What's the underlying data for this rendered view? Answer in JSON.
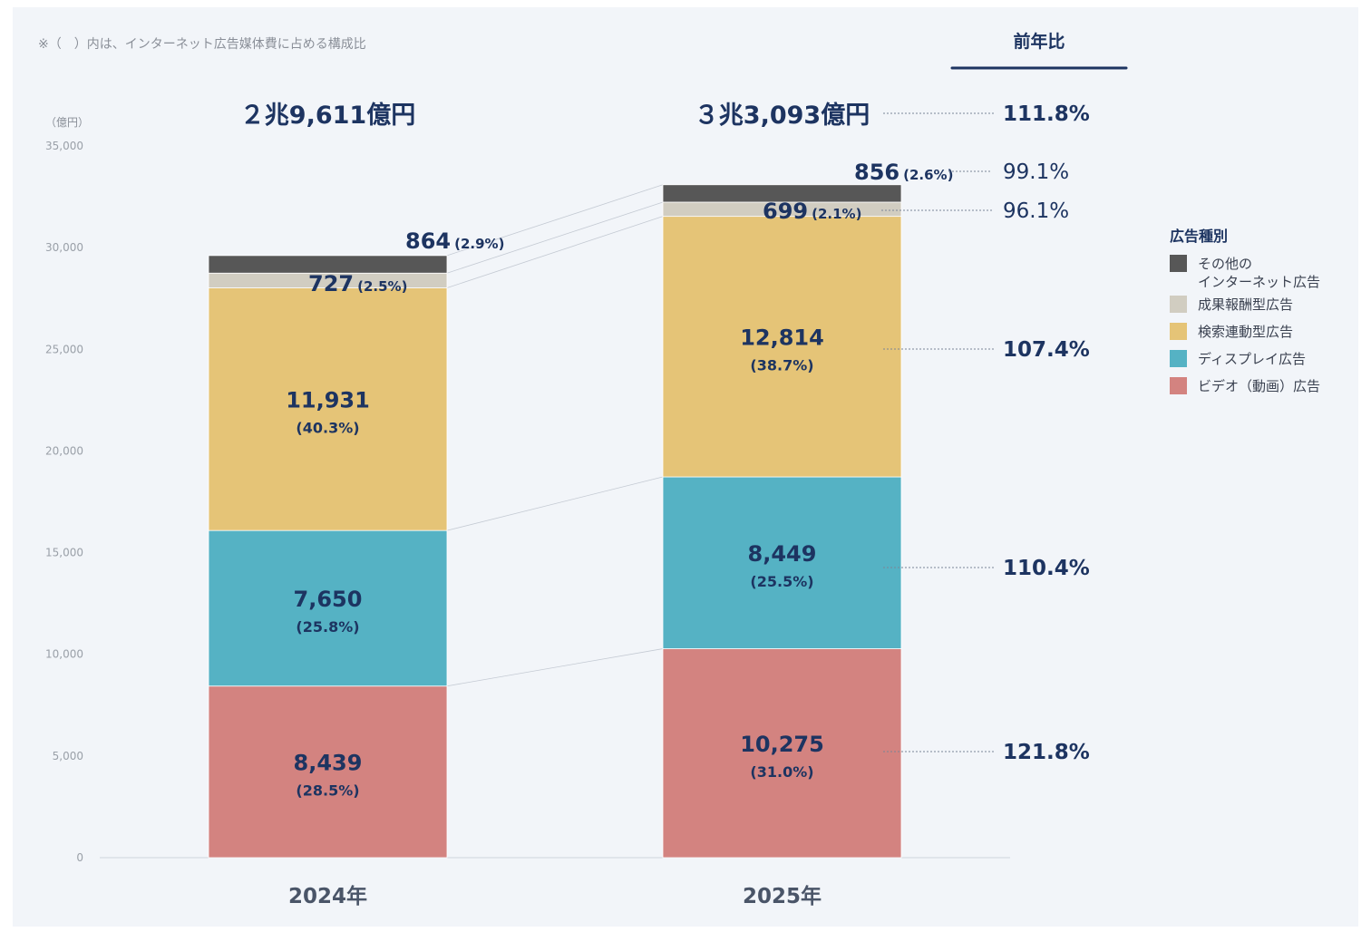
{
  "chart_data": {
    "type": "bar",
    "stacked": true,
    "note": "※（　）内は、インターネット広告媒体費に占める構成比",
    "y_unit": "（億円）",
    "ylim": [
      0,
      35000
    ],
    "y_ticks": [
      "0",
      "5,000",
      "10,000",
      "15,000",
      "20,000",
      "25,000",
      "30,000",
      "35,000"
    ],
    "categories": [
      "2024年",
      "2025年"
    ],
    "totals": [
      "２兆9,611億円",
      "３兆3,093億円"
    ],
    "yoy_header": "前年比",
    "total_yoy": "111.8%",
    "legend_title": "広告種別",
    "series": [
      {
        "name": "ビデオ（動画）広告",
        "color": "#d38380",
        "values": [
          8439,
          10275
        ],
        "labels": [
          "8,439",
          "10,275"
        ],
        "pcts": [
          "(28.5%)",
          "(31.0%)"
        ],
        "yoy": "121.8%",
        "yoy_style": "bold"
      },
      {
        "name": "ディスプレイ広告",
        "color": "#55b2c4",
        "values": [
          7650,
          8449
        ],
        "labels": [
          "7,650",
          "8,449"
        ],
        "pcts": [
          "(25.8%)",
          "(25.5%)"
        ],
        "yoy": "110.4%",
        "yoy_style": "bold"
      },
      {
        "name": "検索連動型広告",
        "color": "#e5c477",
        "values": [
          11931,
          12814
        ],
        "labels": [
          "11,931",
          "12,814"
        ],
        "pcts": [
          "(40.3%)",
          "(38.7%)"
        ],
        "yoy": "107.4%",
        "yoy_style": "bold"
      },
      {
        "name": "成果報酬型広告",
        "color": "#d1cdc1",
        "values": [
          727,
          699
        ],
        "labels": [
          "727",
          "699"
        ],
        "pcts": [
          "(2.5%)",
          "(2.1%)"
        ],
        "yoy": "96.1%",
        "yoy_style": "light"
      },
      {
        "name": "その他のインターネット広告",
        "legend_lines": [
          "その他の",
          "インターネット広告"
        ],
        "color": "#575757",
        "values": [
          864,
          856
        ],
        "labels": [
          "864",
          "856"
        ],
        "pcts": [
          "(2.9%)",
          "(2.6%)"
        ],
        "yoy": "99.1%",
        "yoy_style": "light"
      }
    ],
    "legend_order": [
      4,
      3,
      2,
      1,
      0
    ]
  }
}
